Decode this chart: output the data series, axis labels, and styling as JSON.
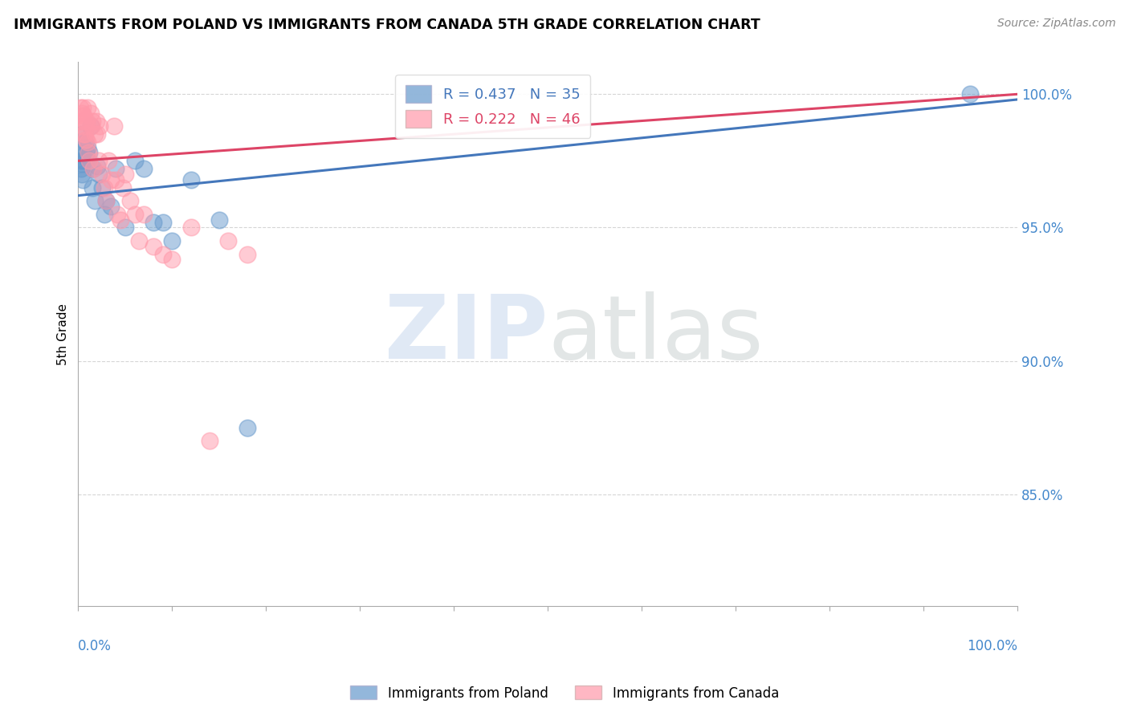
{
  "title": "IMMIGRANTS FROM POLAND VS IMMIGRANTS FROM CANADA 5TH GRADE CORRELATION CHART",
  "source": "Source: ZipAtlas.com",
  "ylabel": "5th Grade",
  "poland_R": 0.437,
  "poland_N": 35,
  "canada_R": 0.222,
  "canada_N": 46,
  "poland_color": "#6699cc",
  "canada_color": "#ff99aa",
  "poland_line_color": "#4477bb",
  "canada_line_color": "#dd4466",
  "legend_poland_label": "R = 0.437   N = 35",
  "legend_canada_label": "R = 0.222   N = 46",
  "x_range": [
    0.0,
    1.0
  ],
  "y_range": [
    0.808,
    1.012
  ],
  "y_ticks": [
    0.85,
    0.9,
    0.95,
    1.0
  ],
  "y_tick_labels": [
    "85.0%",
    "90.0%",
    "95.0%",
    "100.0%"
  ],
  "poland_x": [
    0.002,
    0.003,
    0.004,
    0.004,
    0.005,
    0.005,
    0.006,
    0.006,
    0.007,
    0.008,
    0.009,
    0.01,
    0.011,
    0.012,
    0.013,
    0.015,
    0.016,
    0.018,
    0.02,
    0.022,
    0.025,
    0.028,
    0.03,
    0.035,
    0.04,
    0.05,
    0.06,
    0.07,
    0.08,
    0.09,
    0.1,
    0.12,
    0.15,
    0.18,
    0.95
  ],
  "poland_y": [
    0.975,
    0.972,
    0.974,
    0.97,
    0.968,
    0.985,
    0.975,
    0.98,
    0.982,
    0.978,
    0.976,
    0.98,
    0.975,
    0.978,
    0.988,
    0.965,
    0.972,
    0.96,
    0.973,
    0.97,
    0.965,
    0.955,
    0.96,
    0.958,
    0.972,
    0.95,
    0.975,
    0.972,
    0.952,
    0.952,
    0.945,
    0.968,
    0.953,
    0.875,
    1.0
  ],
  "canada_x": [
    0.002,
    0.003,
    0.004,
    0.005,
    0.005,
    0.006,
    0.006,
    0.007,
    0.007,
    0.008,
    0.009,
    0.01,
    0.01,
    0.011,
    0.012,
    0.013,
    0.014,
    0.015,
    0.016,
    0.018,
    0.019,
    0.02,
    0.022,
    0.023,
    0.025,
    0.028,
    0.03,
    0.032,
    0.035,
    0.038,
    0.04,
    0.042,
    0.045,
    0.048,
    0.05,
    0.055,
    0.06,
    0.065,
    0.07,
    0.08,
    0.09,
    0.1,
    0.12,
    0.14,
    0.16,
    0.18
  ],
  "canada_y": [
    0.995,
    0.99,
    0.993,
    0.988,
    0.995,
    0.985,
    0.992,
    0.99,
    0.985,
    0.983,
    0.99,
    0.982,
    0.995,
    0.978,
    0.975,
    0.993,
    0.988,
    0.99,
    0.972,
    0.985,
    0.99,
    0.985,
    0.975,
    0.988,
    0.97,
    0.965,
    0.96,
    0.975,
    0.968,
    0.988,
    0.968,
    0.955,
    0.953,
    0.965,
    0.97,
    0.96,
    0.955,
    0.945,
    0.955,
    0.943,
    0.94,
    0.938,
    0.95,
    0.87,
    0.945,
    0.94
  ],
  "poland_line_x": [
    0.0,
    1.0
  ],
  "poland_line_y": [
    0.962,
    0.998
  ],
  "canada_line_x": [
    0.0,
    1.0
  ],
  "canada_line_y": [
    0.975,
    1.0
  ]
}
